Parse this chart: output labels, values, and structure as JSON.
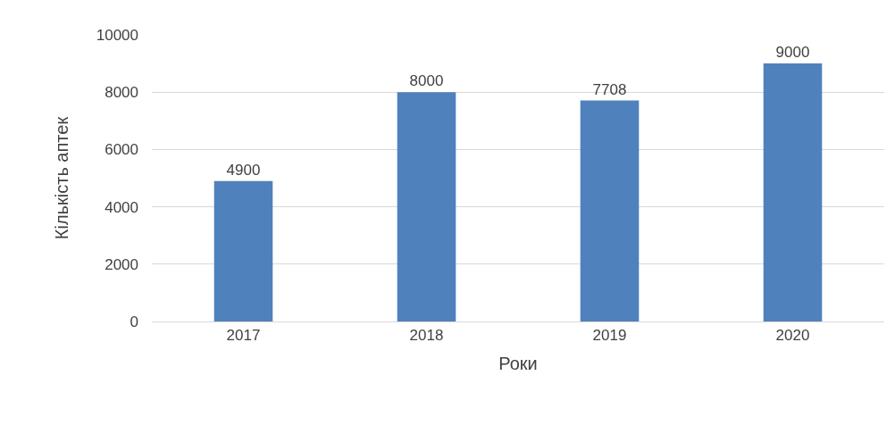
{
  "chart_data": {
    "type": "bar",
    "xlabel": "Роки",
    "ylabel": "Кількість аптек",
    "categories": [
      "2017",
      "2018",
      "2019",
      "2020"
    ],
    "values": [
      4900,
      8000,
      7708,
      9000
    ],
    "color": "#4f81bd",
    "ylim": [
      0,
      10000
    ],
    "yticks": [
      0,
      2000,
      4000,
      6000,
      8000,
      10000
    ],
    "grid": "y",
    "data_labels": true,
    "legend": false
  }
}
